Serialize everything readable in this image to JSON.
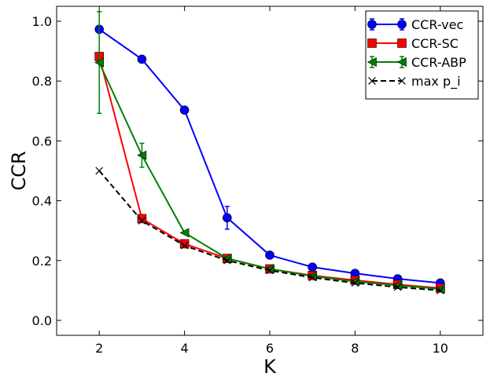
{
  "chart_data": {
    "type": "line",
    "title": "",
    "xlabel": "K",
    "ylabel": "CCR",
    "xlim": [
      1,
      11
    ],
    "ylim": [
      -0.05,
      1.05
    ],
    "xticks": [
      2,
      4,
      6,
      8,
      10
    ],
    "yticks": [
      0.0,
      0.2,
      0.4,
      0.6,
      0.8,
      1.0
    ],
    "ytick_labels": [
      "0.0",
      "0.2",
      "0.4",
      "0.6",
      "0.8",
      "1.0"
    ],
    "grid": false,
    "legend_position": "top-right",
    "x": [
      2,
      3,
      4,
      5,
      6,
      7,
      8,
      9,
      10
    ],
    "series": [
      {
        "name": "CCR-vec",
        "color": "#0000ff",
        "marker": "circle",
        "linestyle": "solid",
        "values": [
          0.973,
          0.873,
          0.703,
          0.343,
          0.218,
          0.178,
          0.157,
          0.139,
          0.125
        ],
        "errors": [
          0.0,
          0.0,
          0.0,
          0.038,
          0.0,
          0.0,
          0.0,
          0.0,
          0.0
        ]
      },
      {
        "name": "CCR-SC",
        "color": "#ff0000",
        "marker": "square",
        "linestyle": "solid",
        "values": [
          0.882,
          0.34,
          0.256,
          0.207,
          0.172,
          0.15,
          0.134,
          0.12,
          0.108
        ],
        "errors": [
          0.0,
          0.0,
          0.0,
          0.0,
          0.0,
          0.0,
          0.0,
          0.0,
          0.0
        ]
      },
      {
        "name": "CCR-ABP",
        "color": "#008000",
        "marker": "triangle-left",
        "linestyle": "solid",
        "values": [
          0.862,
          0.552,
          0.293,
          0.207,
          0.172,
          0.148,
          0.13,
          0.117,
          0.105
        ],
        "errors": [
          0.17,
          0.04,
          0.0,
          0.0,
          0.0,
          0.0,
          0.0,
          0.0,
          0.0
        ]
      },
      {
        "name": "max p_i",
        "color": "#000000",
        "marker": "x",
        "linestyle": "dashed",
        "values": [
          0.5,
          0.333,
          0.25,
          0.2,
          0.167,
          0.143,
          0.125,
          0.111,
          0.1
        ],
        "errors": [
          0.0,
          0.0,
          0.0,
          0.0,
          0.0,
          0.0,
          0.0,
          0.0,
          0.0
        ]
      }
    ]
  }
}
